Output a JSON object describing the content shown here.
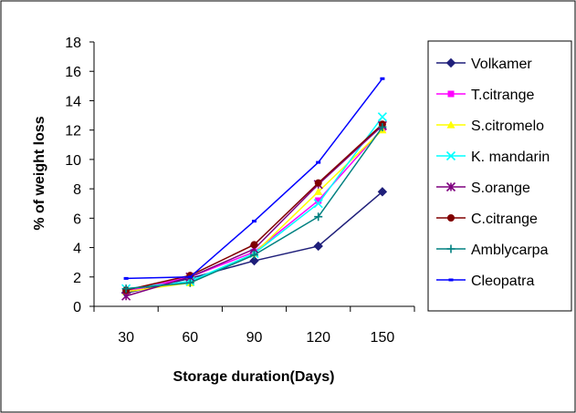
{
  "chart_data": {
    "type": "line",
    "title": "",
    "xlabel": "Storage duration(Days)",
    "ylabel": "% of weight loss",
    "categories": [
      "30",
      "60",
      "90",
      "120",
      "150"
    ],
    "ylim": [
      0,
      18
    ],
    "yticks": [
      "0",
      "2",
      "4",
      "6",
      "8",
      "10",
      "12",
      "14",
      "16",
      "18"
    ],
    "grid": false,
    "legend_position": "right",
    "series": [
      {
        "name": "Volkamer",
        "color": "#1f1f7a",
        "marker": "diamond",
        "values": [
          0.9,
          1.9,
          3.1,
          4.1,
          7.8
        ]
      },
      {
        "name": "T.citrange",
        "color": "#ff00ff",
        "marker": "square",
        "values": [
          1.0,
          2.0,
          3.7,
          7.2,
          12.1
        ]
      },
      {
        "name": "S.citromelo",
        "color": "#ffff00",
        "marker": "triangle",
        "values": [
          1.0,
          1.6,
          3.6,
          7.8,
          12.0
        ]
      },
      {
        "name": "K. mandarin",
        "color": "#00ffff",
        "marker": "x",
        "values": [
          1.2,
          1.7,
          3.6,
          7.0,
          12.9
        ]
      },
      {
        "name": "S.orange",
        "color": "#7f007f",
        "marker": "star",
        "values": [
          0.7,
          2.0,
          3.9,
          8.3,
          12.3
        ]
      },
      {
        "name": "C.citrange",
        "color": "#800000",
        "marker": "circle",
        "values": [
          1.1,
          2.1,
          4.2,
          8.4,
          12.4
        ]
      },
      {
        "name": "Amblycarpa",
        "color": "#008080",
        "marker": "plus",
        "values": [
          1.2,
          1.6,
          3.5,
          6.1,
          12.2
        ]
      },
      {
        "name": "Cleopatra",
        "color": "#0000ff",
        "marker": "dash",
        "values": [
          1.9,
          2.0,
          5.8,
          9.8,
          15.5
        ]
      }
    ]
  }
}
